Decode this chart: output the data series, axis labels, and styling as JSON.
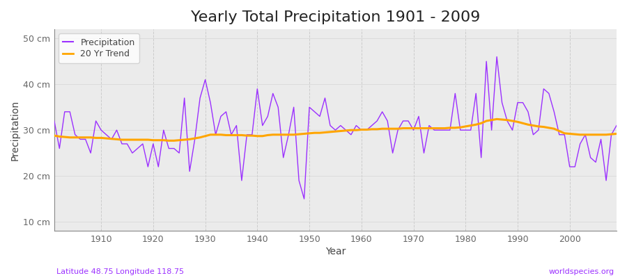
{
  "title": "Yearly Total Precipitation 1901 - 2009",
  "xlabel": "Year",
  "ylabel": "Precipitation",
  "subtitle_left": "Latitude 48.75 Longitude 118.75",
  "subtitle_right": "worldspecies.org",
  "years": [
    1901,
    1902,
    1903,
    1904,
    1905,
    1906,
    1907,
    1908,
    1909,
    1910,
    1911,
    1912,
    1913,
    1914,
    1915,
    1916,
    1917,
    1918,
    1919,
    1920,
    1921,
    1922,
    1923,
    1924,
    1925,
    1926,
    1927,
    1928,
    1929,
    1930,
    1931,
    1932,
    1933,
    1934,
    1935,
    1936,
    1937,
    1938,
    1939,
    1940,
    1941,
    1942,
    1943,
    1944,
    1945,
    1946,
    1947,
    1948,
    1949,
    1950,
    1951,
    1952,
    1953,
    1954,
    1955,
    1956,
    1957,
    1958,
    1959,
    1960,
    1961,
    1962,
    1963,
    1964,
    1965,
    1966,
    1967,
    1968,
    1969,
    1970,
    1971,
    1972,
    1973,
    1974,
    1975,
    1976,
    1977,
    1978,
    1979,
    1980,
    1981,
    1982,
    1983,
    1984,
    1985,
    1986,
    1987,
    1988,
    1989,
    1990,
    1991,
    1992,
    1993,
    1994,
    1995,
    1996,
    1997,
    1998,
    1999,
    2000,
    2001,
    2002,
    2003,
    2004,
    2005,
    2006,
    2007,
    2008,
    2009
  ],
  "precip": [
    32,
    26,
    34,
    34,
    29,
    28,
    28,
    25,
    32,
    30,
    29,
    28,
    30,
    27,
    27,
    25,
    26,
    27,
    22,
    27,
    22,
    30,
    26,
    26,
    25,
    37,
    21,
    28,
    37,
    41,
    36,
    29,
    33,
    34,
    29,
    31,
    19,
    29,
    29,
    39,
    31,
    33,
    38,
    35,
    24,
    29,
    35,
    19,
    15,
    35,
    34,
    33,
    37,
    31,
    30,
    31,
    30,
    29,
    31,
    30,
    30,
    31,
    32,
    34,
    32,
    25,
    30,
    32,
    32,
    30,
    33,
    25,
    31,
    30,
    30,
    30,
    30,
    38,
    30,
    30,
    30,
    38,
    24,
    45,
    30,
    46,
    36,
    32,
    30,
    36,
    36,
    34,
    29,
    30,
    39,
    38,
    34,
    29,
    29,
    22,
    22,
    27,
    29,
    24,
    23,
    28,
    19,
    29,
    31
  ],
  "trend": [
    28.8,
    28.6,
    28.5,
    28.4,
    28.4,
    28.4,
    28.4,
    28.4,
    28.3,
    28.3,
    28.2,
    28.1,
    28.0,
    27.9,
    27.9,
    27.9,
    27.9,
    27.9,
    27.9,
    27.8,
    27.8,
    27.8,
    27.7,
    27.7,
    27.8,
    27.9,
    28.0,
    28.2,
    28.4,
    28.7,
    29.0,
    29.0,
    29.0,
    28.9,
    28.9,
    28.9,
    28.9,
    28.8,
    28.8,
    28.7,
    28.7,
    28.9,
    29.0,
    29.0,
    29.0,
    29.0,
    29.0,
    29.1,
    29.2,
    29.3,
    29.4,
    29.4,
    29.5,
    29.6,
    29.7,
    29.8,
    29.9,
    30.0,
    30.0,
    30.1,
    30.1,
    30.2,
    30.2,
    30.3,
    30.3,
    30.3,
    30.3,
    30.4,
    30.4,
    30.4,
    30.4,
    30.4,
    30.4,
    30.4,
    30.4,
    30.4,
    30.5,
    30.5,
    30.6,
    30.8,
    31.0,
    31.2,
    31.5,
    32.0,
    32.2,
    32.4,
    32.3,
    32.2,
    32.0,
    31.8,
    31.5,
    31.2,
    31.0,
    30.8,
    30.7,
    30.5,
    30.3,
    29.8,
    29.3,
    29.2,
    29.1,
    29.0,
    29.0,
    29.0,
    29.0,
    29.0,
    29.0,
    29.1,
    29.2
  ],
  "precip_color": "#9B30FF",
  "trend_color": "#FFA500",
  "bg_color": "#FFFFFF",
  "plot_bg_color": "#EBEBEB",
  "grid_color_v": "#CCCCCC",
  "grid_color_h": "#D8D8D8",
  "ylim": [
    8,
    52
  ],
  "yticks": [
    10,
    20,
    30,
    40,
    50
  ],
  "ytick_labels": [
    "10 cm",
    "20 cm",
    "30 cm",
    "40 cm",
    "50 cm"
  ],
  "xticks": [
    1910,
    1920,
    1930,
    1940,
    1950,
    1960,
    1970,
    1980,
    1990,
    2000
  ],
  "xlim": [
    1901,
    2009
  ],
  "title_fontsize": 16,
  "axis_fontsize": 10,
  "tick_fontsize": 9,
  "legend_fontsize": 9,
  "subtitle_left_color": "#9B30FF",
  "subtitle_right_color": "#9B30FF"
}
